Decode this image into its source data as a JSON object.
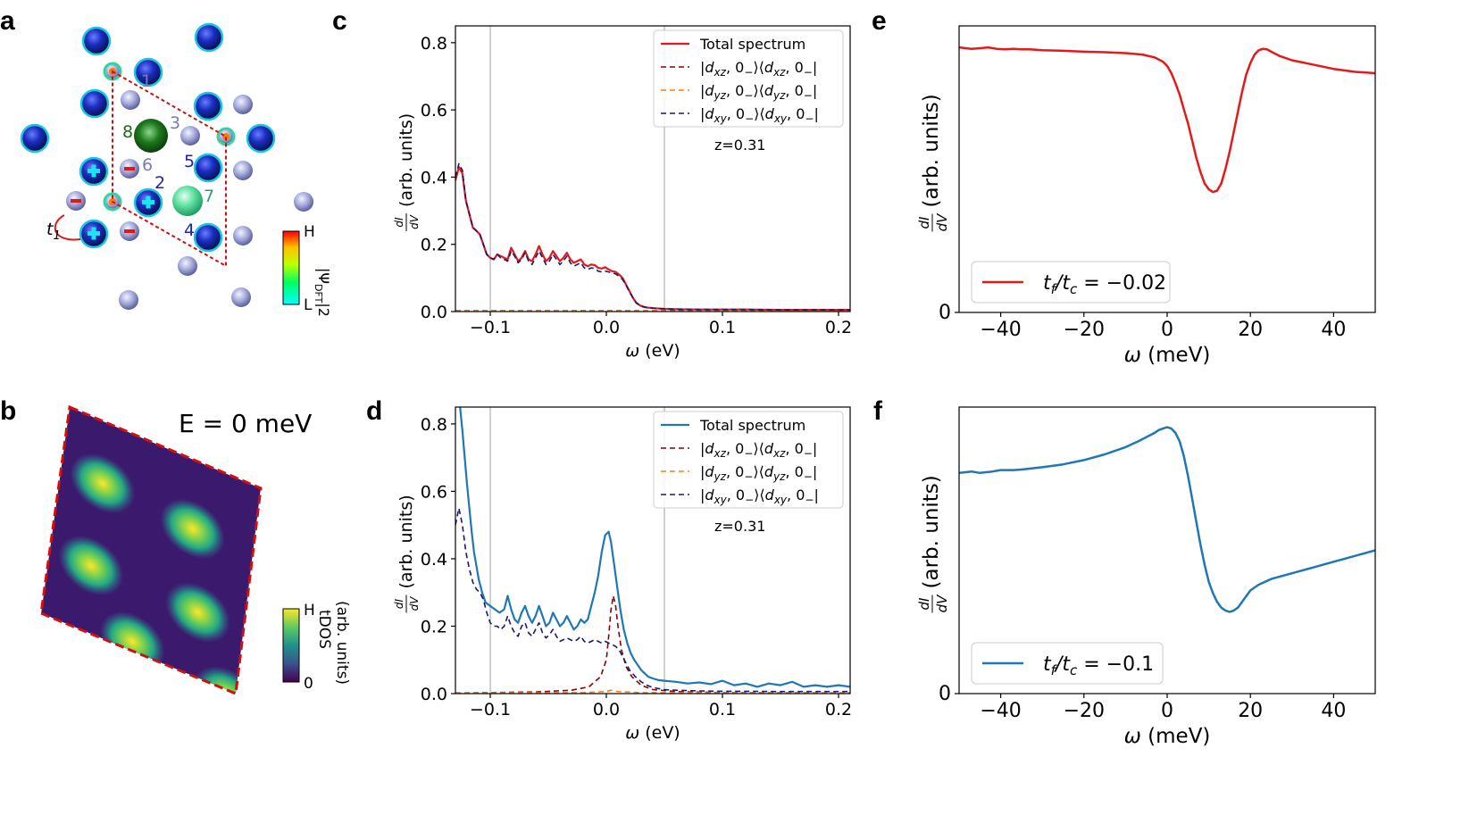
{
  "panel_labels": {
    "a": "a",
    "b": "b",
    "c": "c",
    "d": "d",
    "e": "e",
    "f": "f"
  },
  "panel_a": {
    "atom_numbers": [
      "1",
      "2",
      "3",
      "4",
      "5",
      "6",
      "7",
      "8"
    ],
    "hop_label": "t",
    "hop_sub": "1",
    "colorbar_top": "H",
    "colorbar_bottom": "L",
    "colorbar_label": "|Ψ",
    "colorbar_label_sub": "DFT",
    "colorbar_label_sup": "|2",
    "colorbar_colors": [
      "#00ffff",
      "#00ff60",
      "#c0ff00",
      "#ffc000",
      "#ff0000"
    ]
  },
  "panel_b": {
    "energy_label": "E = 0 meV",
    "colorbar_top": "H",
    "colorbar_bottom": "0",
    "colorbar_label_1": "tDOS",
    "colorbar_label_2": "(arb. units)"
  },
  "chart_data": [
    {
      "id": "c",
      "type": "line",
      "xlabel": "ω (eV)",
      "ylabel": "(arb. units)",
      "ylabel_frac_num": "dI",
      "ylabel_frac_den": "dV",
      "xlim": [
        -0.13,
        0.21
      ],
      "ylim": [
        0.0,
        0.85
      ],
      "xticks": [
        "-0.1",
        "0.0",
        "0.1",
        "0.2"
      ],
      "xtick_values": [
        -0.1,
        0.0,
        0.1,
        0.2
      ],
      "yticks": [
        "0.0",
        "0.2",
        "0.4",
        "0.6",
        "0.8"
      ],
      "ytick_values": [
        0.0,
        0.2,
        0.4,
        0.6,
        0.8
      ],
      "vlines": [
        -0.1,
        0.05
      ],
      "annotation": "z=0.31",
      "series": [
        {
          "name": "Total spectrum",
          "color": "#e31a1c",
          "dash": "solid",
          "x": [
            -0.13,
            -0.127,
            -0.124,
            -0.121,
            -0.118,
            -0.115,
            -0.112,
            -0.109,
            -0.106,
            -0.103,
            -0.1,
            -0.097,
            -0.094,
            -0.091,
            -0.088,
            -0.085,
            -0.082,
            -0.079,
            -0.076,
            -0.073,
            -0.07,
            -0.067,
            -0.064,
            -0.061,
            -0.058,
            -0.055,
            -0.052,
            -0.049,
            -0.046,
            -0.043,
            -0.04,
            -0.037,
            -0.034,
            -0.031,
            -0.028,
            -0.025,
            -0.022,
            -0.019,
            -0.016,
            -0.013,
            -0.01,
            -0.007,
            -0.004,
            -0.001,
            0.002,
            0.005,
            0.008,
            0.011,
            0.014,
            0.017,
            0.02,
            0.023,
            0.026,
            0.029,
            0.032,
            0.035,
            0.04,
            0.05,
            0.06,
            0.08,
            0.1,
            0.12,
            0.15,
            0.18,
            0.21
          ],
          "y": [
            0.39,
            0.43,
            0.41,
            0.33,
            0.29,
            0.25,
            0.24,
            0.23,
            0.2,
            0.17,
            0.16,
            0.155,
            0.17,
            0.165,
            0.16,
            0.155,
            0.19,
            0.17,
            0.15,
            0.16,
            0.18,
            0.155,
            0.15,
            0.17,
            0.195,
            0.17,
            0.15,
            0.16,
            0.18,
            0.165,
            0.15,
            0.16,
            0.175,
            0.155,
            0.145,
            0.15,
            0.155,
            0.14,
            0.135,
            0.14,
            0.138,
            0.13,
            0.128,
            0.132,
            0.125,
            0.12,
            0.118,
            0.11,
            0.1,
            0.08,
            0.06,
            0.04,
            0.025,
            0.018,
            0.014,
            0.012,
            0.01,
            0.008,
            0.007,
            0.006,
            0.006,
            0.006,
            0.005,
            0.005,
            0.005
          ]
        },
        {
          "name": "|dxz, 0₋⟩⟨dxz, 0₋|",
          "color": "#8b0000",
          "dash": "dashed",
          "x": [
            -0.13,
            0.21
          ],
          "y": [
            0.002,
            0.002
          ]
        },
        {
          "name": "|dyz, 0₋⟩⟨dyz, 0₋|",
          "color": "#ff7f0e",
          "dash": "dashed",
          "x": [
            -0.13,
            0.21
          ],
          "y": [
            0.001,
            0.001
          ]
        },
        {
          "name": "|dxy, 0₋⟩⟨dxy, 0₋|",
          "color": "#191970",
          "dash": "dashed",
          "x": [
            -0.13,
            -0.127,
            -0.124,
            -0.121,
            -0.118,
            -0.115,
            -0.112,
            -0.109,
            -0.106,
            -0.103,
            -0.1,
            -0.097,
            -0.094,
            -0.091,
            -0.088,
            -0.085,
            -0.082,
            -0.079,
            -0.076,
            -0.073,
            -0.07,
            -0.067,
            -0.064,
            -0.061,
            -0.058,
            -0.055,
            -0.052,
            -0.049,
            -0.046,
            -0.043,
            -0.04,
            -0.037,
            -0.034,
            -0.031,
            -0.028,
            -0.025,
            -0.022,
            -0.019,
            -0.016,
            -0.013,
            -0.01,
            -0.007,
            -0.004,
            -0.001,
            0.002,
            0.005,
            0.008,
            0.011,
            0.014,
            0.017,
            0.02,
            0.023,
            0.026,
            0.029,
            0.032,
            0.035,
            0.04,
            0.05,
            0.06,
            0.08,
            0.1,
            0.12,
            0.15,
            0.18,
            0.21
          ],
          "y": [
            0.4,
            0.44,
            0.42,
            0.33,
            0.29,
            0.25,
            0.24,
            0.23,
            0.2,
            0.17,
            0.16,
            0.155,
            0.17,
            0.16,
            0.155,
            0.15,
            0.18,
            0.165,
            0.145,
            0.155,
            0.175,
            0.15,
            0.14,
            0.16,
            0.18,
            0.16,
            0.14,
            0.15,
            0.17,
            0.155,
            0.14,
            0.15,
            0.165,
            0.145,
            0.135,
            0.14,
            0.145,
            0.13,
            0.125,
            0.13,
            0.128,
            0.12,
            0.118,
            0.12,
            0.118,
            0.115,
            0.112,
            0.105,
            0.095,
            0.078,
            0.058,
            0.04,
            0.025,
            0.018,
            0.014,
            0.012,
            0.01,
            0.008,
            0.007,
            0.006,
            0.006,
            0.006,
            0.005,
            0.005,
            0.005
          ]
        }
      ]
    },
    {
      "id": "d",
      "type": "line",
      "xlabel": "ω (eV)",
      "ylabel": "(arb. units)",
      "ylabel_frac_num": "dI",
      "ylabel_frac_den": "dV",
      "xlim": [
        -0.13,
        0.21
      ],
      "ylim": [
        0.0,
        0.85
      ],
      "xticks": [
        "-0.1",
        "0.0",
        "0.1",
        "0.2"
      ],
      "xtick_values": [
        -0.1,
        0.0,
        0.1,
        0.2
      ],
      "yticks": [
        "0.0",
        "0.2",
        "0.4",
        "0.6",
        "0.8"
      ],
      "ytick_values": [
        0.0,
        0.2,
        0.4,
        0.6,
        0.8
      ],
      "vlines": [
        -0.1,
        0.05
      ],
      "annotation": "z=0.31",
      "series": [
        {
          "name": "Total spectrum",
          "color": "#1f77b4",
          "dash": "solid",
          "x": [
            -0.126,
            -0.124,
            -0.122,
            -0.12,
            -0.118,
            -0.116,
            -0.114,
            -0.112,
            -0.11,
            -0.107,
            -0.104,
            -0.1,
            -0.096,
            -0.092,
            -0.088,
            -0.085,
            -0.082,
            -0.079,
            -0.076,
            -0.073,
            -0.07,
            -0.067,
            -0.064,
            -0.061,
            -0.058,
            -0.055,
            -0.052,
            -0.049,
            -0.046,
            -0.043,
            -0.04,
            -0.037,
            -0.034,
            -0.031,
            -0.028,
            -0.025,
            -0.022,
            -0.019,
            -0.016,
            -0.013,
            -0.01,
            -0.007,
            -0.004,
            -0.001,
            0.002,
            0.004,
            0.006,
            0.008,
            0.01,
            0.012,
            0.015,
            0.018,
            0.021,
            0.024,
            0.027,
            0.03,
            0.033,
            0.036,
            0.04,
            0.045,
            0.05,
            0.06,
            0.07,
            0.08,
            0.09,
            0.1,
            0.11,
            0.12,
            0.13,
            0.14,
            0.15,
            0.16,
            0.17,
            0.18,
            0.19,
            0.2,
            0.21
          ],
          "y": [
            0.85,
            0.78,
            0.7,
            0.62,
            0.55,
            0.48,
            0.42,
            0.38,
            0.34,
            0.3,
            0.27,
            0.26,
            0.25,
            0.24,
            0.25,
            0.29,
            0.25,
            0.22,
            0.21,
            0.24,
            0.26,
            0.23,
            0.21,
            0.23,
            0.26,
            0.23,
            0.2,
            0.21,
            0.24,
            0.22,
            0.2,
            0.21,
            0.23,
            0.21,
            0.19,
            0.2,
            0.22,
            0.21,
            0.22,
            0.26,
            0.3,
            0.35,
            0.42,
            0.47,
            0.48,
            0.45,
            0.4,
            0.35,
            0.3,
            0.25,
            0.19,
            0.15,
            0.12,
            0.1,
            0.085,
            0.07,
            0.06,
            0.05,
            0.045,
            0.04,
            0.038,
            0.035,
            0.03,
            0.033,
            0.028,
            0.038,
            0.025,
            0.03,
            0.02,
            0.03,
            0.025,
            0.035,
            0.02,
            0.025,
            0.02,
            0.025,
            0.02
          ]
        },
        {
          "name": "|dxz, 0₋⟩⟨dxz, 0₋|",
          "color": "#8b0000",
          "dash": "dashed",
          "x": [
            -0.13,
            -0.1,
            -0.06,
            -0.03,
            -0.015,
            -0.005,
            0.0,
            0.002,
            0.004,
            0.006,
            0.008,
            0.01,
            0.013,
            0.017,
            0.022,
            0.03,
            0.04,
            0.06,
            0.1,
            0.21
          ],
          "y": [
            0.002,
            0.003,
            0.005,
            0.01,
            0.02,
            0.05,
            0.1,
            0.17,
            0.25,
            0.29,
            0.26,
            0.2,
            0.13,
            0.08,
            0.05,
            0.025,
            0.012,
            0.006,
            0.003,
            0.002
          ]
        },
        {
          "name": "|dyz, 0₋⟩⟨dyz, 0₋|",
          "color": "#ff7f0e",
          "dash": "dashed",
          "x": [
            -0.13,
            -0.02,
            0.0,
            0.004,
            0.01,
            0.03,
            0.21
          ],
          "y": [
            0.002,
            0.003,
            0.006,
            0.01,
            0.006,
            0.003,
            0.002
          ]
        },
        {
          "name": "|dxy, 0₋⟩⟨dxy, 0₋|",
          "color": "#191970",
          "dash": "dashed",
          "x": [
            -0.13,
            -0.127,
            -0.124,
            -0.121,
            -0.118,
            -0.115,
            -0.112,
            -0.109,
            -0.106,
            -0.103,
            -0.1,
            -0.097,
            -0.094,
            -0.091,
            -0.088,
            -0.085,
            -0.082,
            -0.079,
            -0.076,
            -0.073,
            -0.07,
            -0.067,
            -0.064,
            -0.061,
            -0.058,
            -0.055,
            -0.052,
            -0.049,
            -0.046,
            -0.043,
            -0.04,
            -0.037,
            -0.034,
            -0.031,
            -0.028,
            -0.025,
            -0.022,
            -0.019,
            -0.016,
            -0.013,
            -0.01,
            -0.007,
            -0.004,
            -0.001,
            0.002,
            0.005,
            0.008,
            0.011,
            0.014,
            0.017,
            0.02,
            0.025,
            0.03,
            0.035,
            0.04,
            0.05,
            0.06,
            0.08,
            0.1,
            0.12,
            0.15,
            0.18,
            0.21
          ],
          "y": [
            0.5,
            0.55,
            0.5,
            0.42,
            0.37,
            0.33,
            0.31,
            0.3,
            0.28,
            0.24,
            0.21,
            0.2,
            0.2,
            0.19,
            0.2,
            0.23,
            0.2,
            0.18,
            0.17,
            0.2,
            0.21,
            0.18,
            0.17,
            0.19,
            0.21,
            0.18,
            0.165,
            0.175,
            0.19,
            0.17,
            0.155,
            0.16,
            0.165,
            0.16,
            0.155,
            0.16,
            0.17,
            0.155,
            0.15,
            0.155,
            0.16,
            0.155,
            0.15,
            0.155,
            0.15,
            0.145,
            0.14,
            0.13,
            0.11,
            0.09,
            0.07,
            0.05,
            0.035,
            0.025,
            0.018,
            0.012,
            0.01,
            0.008,
            0.007,
            0.007,
            0.006,
            0.006,
            0.006
          ]
        }
      ]
    },
    {
      "id": "e",
      "type": "line",
      "xlabel": "ω (meV)",
      "ylabel": "(arb. units)",
      "ylabel_frac_num": "dI",
      "ylabel_frac_den": "dV",
      "xlim": [
        -50,
        50
      ],
      "ylim": [
        0,
        1
      ],
      "xticks": [
        "-40",
        "-20",
        "0",
        "20",
        "40"
      ],
      "xtick_values": [
        -40,
        -20,
        0,
        20,
        40
      ],
      "yticks": [
        "0"
      ],
      "ytick_values": [
        0
      ],
      "legend": {
        "label_main": "t",
        "sub1": "f",
        "slash": "/t",
        "sub2": "c",
        "value": " =  -0.02"
      },
      "series": [
        {
          "name": "t_f/t_c = -0.02",
          "color": "#e31a1c",
          "dash": "solid",
          "x": [
            -50,
            -47,
            -45,
            -43,
            -41,
            -39,
            -37,
            -35,
            -33,
            -30,
            -25,
            -20,
            -15,
            -10,
            -6,
            -3,
            -1,
            0,
            1,
            2,
            3,
            4,
            5,
            6,
            7,
            8,
            9,
            10,
            11,
            12,
            13,
            14,
            15,
            16,
            17,
            18,
            19,
            20,
            21,
            22,
            23,
            24,
            25,
            27,
            30,
            35,
            40,
            45,
            50
          ],
          "y": [
            0.925,
            0.92,
            0.922,
            0.925,
            0.92,
            0.918,
            0.92,
            0.918,
            0.918,
            0.915,
            0.913,
            0.91,
            0.908,
            0.905,
            0.9,
            0.89,
            0.875,
            0.86,
            0.835,
            0.8,
            0.76,
            0.71,
            0.66,
            0.6,
            0.54,
            0.49,
            0.45,
            0.43,
            0.42,
            0.425,
            0.45,
            0.5,
            0.56,
            0.63,
            0.7,
            0.77,
            0.83,
            0.87,
            0.9,
            0.915,
            0.92,
            0.918,
            0.91,
            0.895,
            0.88,
            0.865,
            0.85,
            0.84,
            0.835
          ]
        }
      ]
    },
    {
      "id": "f",
      "type": "line",
      "xlabel": "ω (meV)",
      "ylabel": "(arb. units)",
      "ylabel_frac_num": "dI",
      "ylabel_frac_den": "dV",
      "xlim": [
        -50,
        50
      ],
      "ylim": [
        0,
        1
      ],
      "xticks": [
        "-40",
        "-20",
        "0",
        "20",
        "40"
      ],
      "xtick_values": [
        -40,
        -20,
        0,
        20,
        40
      ],
      "yticks": [
        "0"
      ],
      "ytick_values": [
        0
      ],
      "legend": {
        "label_main": "t",
        "sub1": "f",
        "slash": "/t",
        "sub2": "c",
        "value": " =  -0.1"
      },
      "series": [
        {
          "name": "t_f/t_c = -0.1",
          "color": "#1f77b4",
          "dash": "solid",
          "x": [
            -50,
            -47,
            -45,
            -42,
            -40,
            -37,
            -35,
            -30,
            -25,
            -20,
            -15,
            -10,
            -7,
            -5,
            -3,
            -2,
            -1,
            0,
            1,
            2,
            3,
            4,
            5,
            6,
            7,
            8,
            9,
            10,
            11,
            12,
            13,
            14,
            15,
            16,
            17,
            18,
            19,
            20,
            22,
            25,
            30,
            35,
            40,
            45,
            50
          ],
          "y": [
            0.77,
            0.775,
            0.77,
            0.775,
            0.78,
            0.78,
            0.782,
            0.79,
            0.8,
            0.815,
            0.835,
            0.86,
            0.88,
            0.895,
            0.91,
            0.92,
            0.925,
            0.93,
            0.925,
            0.91,
            0.88,
            0.83,
            0.76,
            0.68,
            0.6,
            0.52,
            0.45,
            0.39,
            0.35,
            0.32,
            0.3,
            0.29,
            0.285,
            0.29,
            0.3,
            0.32,
            0.34,
            0.36,
            0.38,
            0.4,
            0.42,
            0.44,
            0.46,
            0.48,
            0.5
          ]
        }
      ]
    }
  ]
}
